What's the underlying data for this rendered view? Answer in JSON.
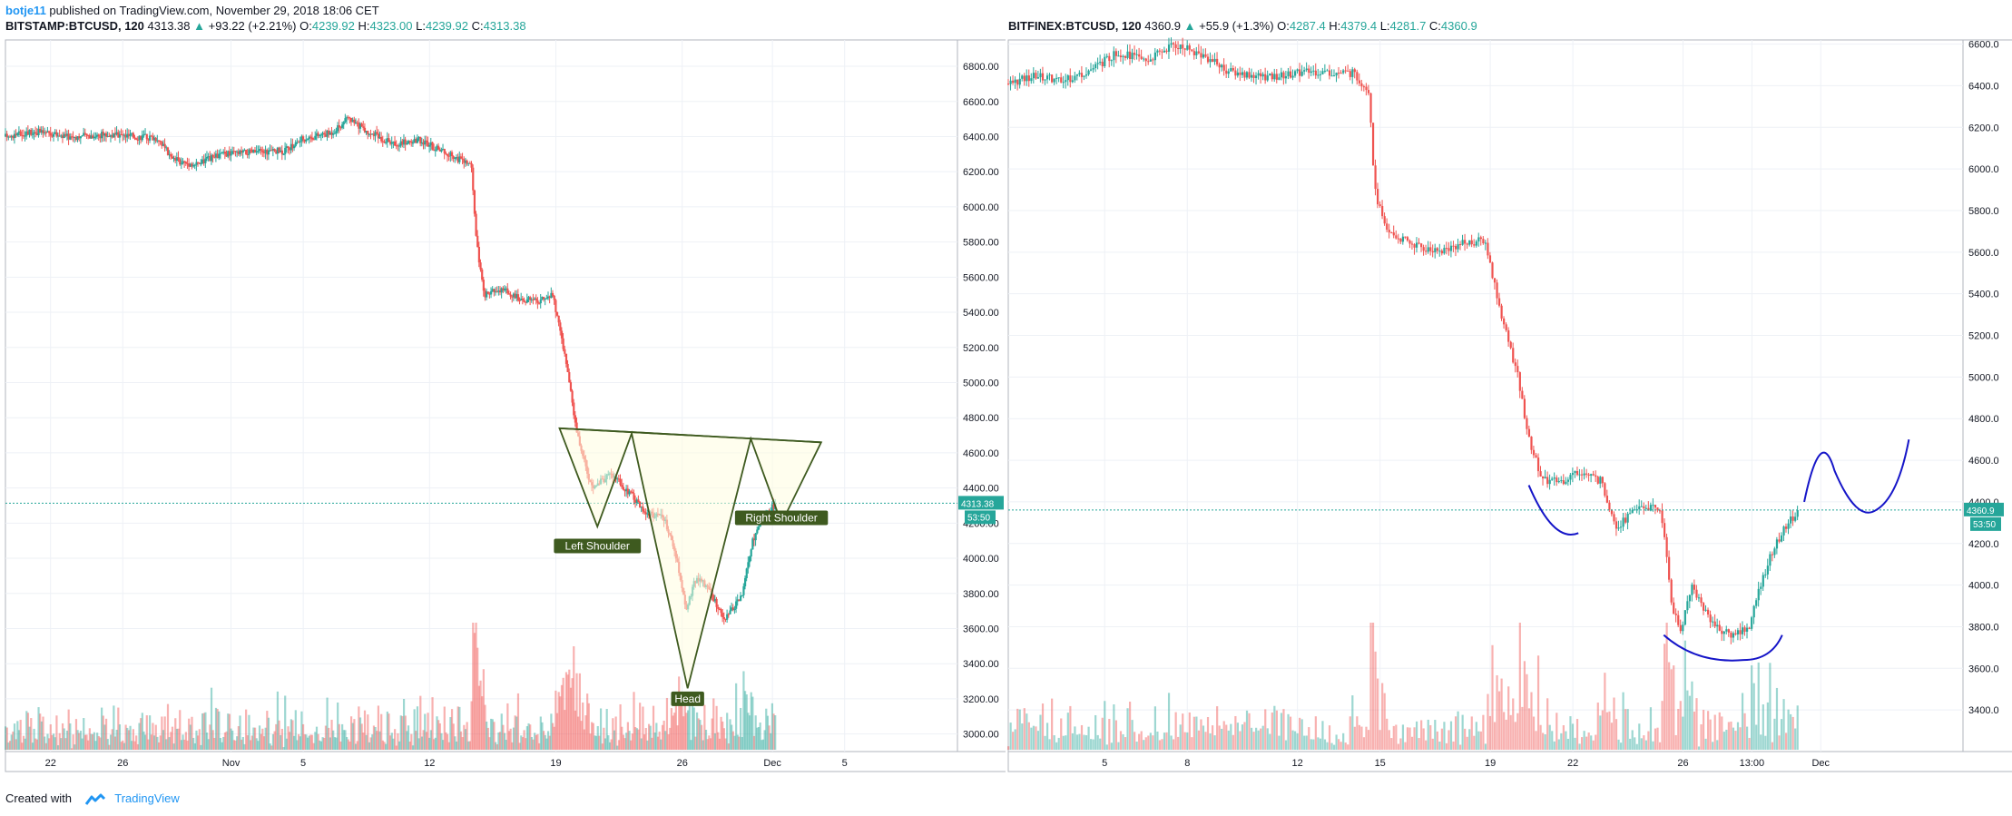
{
  "header": {
    "author": "botje11",
    "published": " published on TradingView.com, November 29, 2018 18:06 CET"
  },
  "footer": {
    "created_with": "Created with",
    "brand": "TradingView"
  },
  "colors": {
    "up": "#26a69a",
    "down": "#ef5350",
    "pattern": "#3e5a1f",
    "pattern_fill": "#fffde0",
    "arc": "#1515c8",
    "price_line": "#26a69a"
  },
  "chart_data": [
    {
      "type": "candlestick",
      "legend": {
        "symbol": "BITSTAMP:BTCUSD, 120",
        "last": "4313.38",
        "change": "+93.22 (+2.21%)",
        "o_label": "O:",
        "o": "4239.92",
        "h_label": "H:",
        "h": "4323.00",
        "l_label": "L:",
        "l": "4239.92",
        "c_label": "C:",
        "c": "4313.38"
      },
      "ylim": [
        2900,
        6950
      ],
      "y_ticks": [
        "6800.00",
        "6600.00",
        "6400.00",
        "6200.00",
        "6000.00",
        "5800.00",
        "5600.00",
        "5400.00",
        "5200.00",
        "5000.00",
        "4800.00",
        "4600.00",
        "4400.00",
        "4200.00",
        "4000.00",
        "3800.00",
        "3600.00",
        "3400.00",
        "3200.00",
        "3000.00"
      ],
      "x_ticks": [
        "22",
        "26",
        "Nov",
        "5",
        "12",
        "19",
        "26",
        "Dec",
        "5"
      ],
      "x_tick_days": [
        -10,
        -6,
        0,
        4,
        11,
        18,
        25,
        30,
        34
      ],
      "x_range_days": [
        -12.5,
        40
      ],
      "last_price": "4313.38",
      "countdown": "53:50",
      "price_path": [
        [
          -12.5,
          6400
        ],
        [
          -11,
          6430
        ],
        [
          -9,
          6400
        ],
        [
          -7,
          6410
        ],
        [
          -5,
          6400
        ],
        [
          -4,
          6390
        ],
        [
          -3.3,
          6270
        ],
        [
          -2,
          6240
        ],
        [
          -0.5,
          6300
        ],
        [
          1,
          6310
        ],
        [
          3,
          6320
        ],
        [
          4,
          6390
        ],
        [
          5.5,
          6420
        ],
        [
          6.5,
          6500
        ],
        [
          7.5,
          6430
        ],
        [
          9,
          6360
        ],
        [
          10.5,
          6380
        ],
        [
          12,
          6300
        ],
        [
          13.3,
          6240
        ],
        [
          13.6,
          5800
        ],
        [
          14,
          5500
        ],
        [
          15,
          5530
        ],
        [
          16,
          5480
        ],
        [
          17,
          5460
        ],
        [
          17.8,
          5500
        ],
        [
          18.2,
          5320
        ],
        [
          18.6,
          5100
        ],
        [
          19,
          4800
        ],
        [
          19.4,
          4620
        ],
        [
          20,
          4400
        ],
        [
          21,
          4480
        ],
        [
          22,
          4380
        ],
        [
          23,
          4260
        ],
        [
          24,
          4230
        ],
        [
          24.7,
          4000
        ],
        [
          25.2,
          3700
        ],
        [
          25.8,
          3900
        ],
        [
          26.6,
          3800
        ],
        [
          27.3,
          3640
        ],
        [
          28.3,
          3780
        ],
        [
          28.9,
          4100
        ],
        [
          29.6,
          4250
        ],
        [
          30.2,
          4313
        ]
      ],
      "annotations": [
        {
          "label": "Left Shoulder"
        },
        {
          "label": "Head"
        },
        {
          "label": "Right Shoulder"
        }
      ]
    },
    {
      "type": "candlestick",
      "legend": {
        "symbol": "BITFINEX:BTCUSD, 120",
        "last": "4360.9",
        "change": "+55.9 (+1.3%)",
        "o_label": "O:",
        "o": "4287.4",
        "h_label": "H:",
        "h": "4379.4",
        "l_label": "L:",
        "l": "4281.7",
        "c_label": "C:",
        "c": "4360.9"
      },
      "ylim": [
        3200,
        6620
      ],
      "y_ticks": [
        "6600.0",
        "6400.0",
        "6200.0",
        "6000.0",
        "5800.0",
        "5600.0",
        "5400.0",
        "5200.0",
        "5000.0",
        "4800.0",
        "4600.0",
        "4400.0",
        "4200.0",
        "4000.0",
        "3800.0",
        "3600.0",
        "3400.0"
      ],
      "x_ticks": [
        "5",
        "8",
        "12",
        "15",
        "19",
        "22",
        "26",
        "13:00",
        "Dec"
      ],
      "x_tick_days": [
        4,
        7,
        11,
        14,
        18,
        21,
        25,
        27.5,
        30
      ],
      "x_range_days": [
        0.5,
        35
      ],
      "last_price": "4360.9",
      "countdown": "53:50",
      "price_path": [
        [
          0.5,
          6410
        ],
        [
          1.5,
          6450
        ],
        [
          2.5,
          6420
        ],
        [
          3.5,
          6480
        ],
        [
          4.5,
          6560
        ],
        [
          5.5,
          6520
        ],
        [
          6.5,
          6600
        ],
        [
          7.5,
          6550
        ],
        [
          8.5,
          6470
        ],
        [
          10,
          6440
        ],
        [
          11.5,
          6470
        ],
        [
          13,
          6460
        ],
        [
          13.6,
          6380
        ],
        [
          13.8,
          5900
        ],
        [
          14.2,
          5700
        ],
        [
          15,
          5650
        ],
        [
          16,
          5600
        ],
        [
          17,
          5640
        ],
        [
          17.8,
          5660
        ],
        [
          18.4,
          5300
        ],
        [
          19,
          5000
        ],
        [
          19.4,
          4700
        ],
        [
          19.9,
          4500
        ],
        [
          20.6,
          4500
        ],
        [
          21.2,
          4550
        ],
        [
          22,
          4500
        ],
        [
          22.6,
          4280
        ],
        [
          23.5,
          4380
        ],
        [
          24.2,
          4360
        ],
        [
          24.6,
          3900
        ],
        [
          24.9,
          3780
        ],
        [
          25.3,
          4000
        ],
        [
          25.7,
          3900
        ],
        [
          26.2,
          3800
        ],
        [
          26.7,
          3760
        ],
        [
          27.4,
          3800
        ],
        [
          27.8,
          4000
        ],
        [
          28.2,
          4150
        ],
        [
          28.8,
          4300
        ],
        [
          29.2,
          4361
        ]
      ],
      "arcs": [
        {
          "label": "arc-left"
        },
        {
          "label": "arc-cup"
        },
        {
          "label": "arc-right"
        }
      ]
    }
  ]
}
